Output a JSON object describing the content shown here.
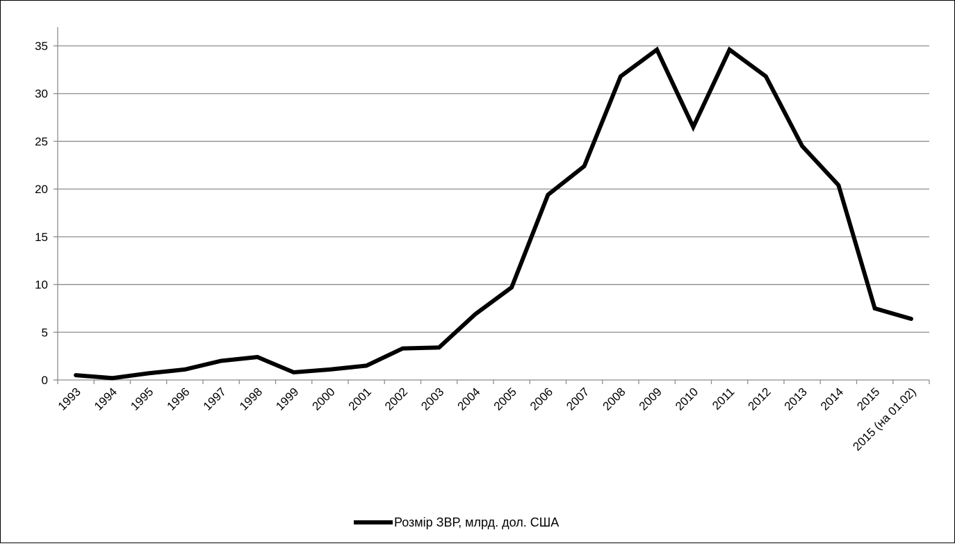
{
  "chart_data": {
    "type": "line",
    "title": "",
    "xlabel": "",
    "ylabel": "",
    "ylim": [
      0,
      35
    ],
    "yticks": [
      0,
      5,
      10,
      15,
      20,
      25,
      30,
      35
    ],
    "grid": true,
    "legend_position": "bottom",
    "categories": [
      "1993",
      "1994",
      "1995",
      "1996",
      "1997",
      "1998",
      "1999",
      "2000",
      "2001",
      "2002",
      "2003",
      "2004",
      "2005",
      "2006",
      "2007",
      "2008",
      "2009",
      "2010",
      "2011",
      "2012",
      "2013",
      "2014",
      "2015",
      "2015 (на 01.02)"
    ],
    "series": [
      {
        "name": "Розмір ЗВР, млрд. дол. США",
        "color": "#000000",
        "values": [
          0.5,
          0.2,
          0.7,
          1.1,
          2.0,
          2.4,
          0.8,
          1.1,
          1.5,
          3.3,
          3.4,
          6.9,
          9.7,
          19.4,
          22.4,
          31.8,
          34.6,
          26.5,
          34.6,
          31.8,
          24.5,
          20.4,
          7.5,
          6.4
        ]
      }
    ]
  },
  "colors": {
    "line": "#000000",
    "grid": "#8c8c8c",
    "axis": "#8c8c8c",
    "background": "#ffffff"
  }
}
